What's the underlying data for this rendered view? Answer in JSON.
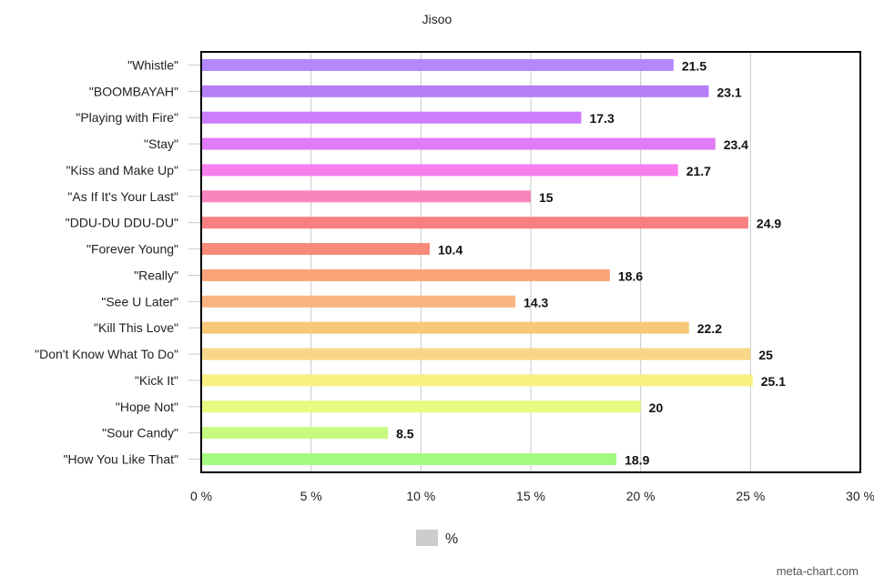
{
  "chart_data": {
    "type": "bar",
    "orientation": "horizontal",
    "title": "Jisoo",
    "categories": [
      "\"Whistle\"",
      "\"BOOMBAYAH\"",
      "\"Playing with Fire\"",
      "\"Stay\"",
      "\"Kiss and Make Up\"",
      "\"As If It's Your Last\"",
      "\"DDU-DU DDU-DU\"",
      "\"Forever Young\"",
      "\"Really\"",
      "\"See U Later\"",
      "\"Kill This Love\"",
      "\"Don't Know What To Do\"",
      "\"Kick It\"",
      "\"Hope Not\"",
      "\"Sour Candy\"",
      "\"How You Like That\""
    ],
    "series": [
      {
        "name": "%",
        "values": [
          21.5,
          23.1,
          17.3,
          23.4,
          21.7,
          15,
          24.9,
          10.4,
          18.6,
          14.3,
          22.2,
          25,
          25.1,
          20,
          8.5,
          18.9
        ],
        "labels": [
          "21.5",
          "23.1",
          "17.3",
          "23.4",
          "21.7",
          "15",
          "24.9",
          "10.4",
          "18.6",
          "14.3",
          "22.2",
          "25",
          "25.1",
          "20",
          "8.5",
          "18.9"
        ]
      }
    ],
    "colors": [
      "#b388ff",
      "#b67ff8",
      "#cc7dfb",
      "#e07cf7",
      "#f87ef0",
      "#f885bd",
      "#f88080",
      "#f88a7a",
      "#f8a478",
      "#f8b380",
      "#f8c878",
      "#f8d888",
      "#f8f080",
      "#e8fa80",
      "#c8fa80",
      "#a4fa80"
    ],
    "xlim": [
      0,
      30
    ],
    "xticks": [
      0,
      5,
      10,
      15,
      20,
      25,
      30
    ],
    "xtick_labels": [
      "0 %",
      "5 %",
      "10 %",
      "15 %",
      "20 %",
      "25 %",
      "30 %"
    ],
    "grid": true,
    "legend": {
      "position": "bottom",
      "label": "%",
      "swatch_color": "#cccccc"
    },
    "credit": "meta-chart.com"
  }
}
